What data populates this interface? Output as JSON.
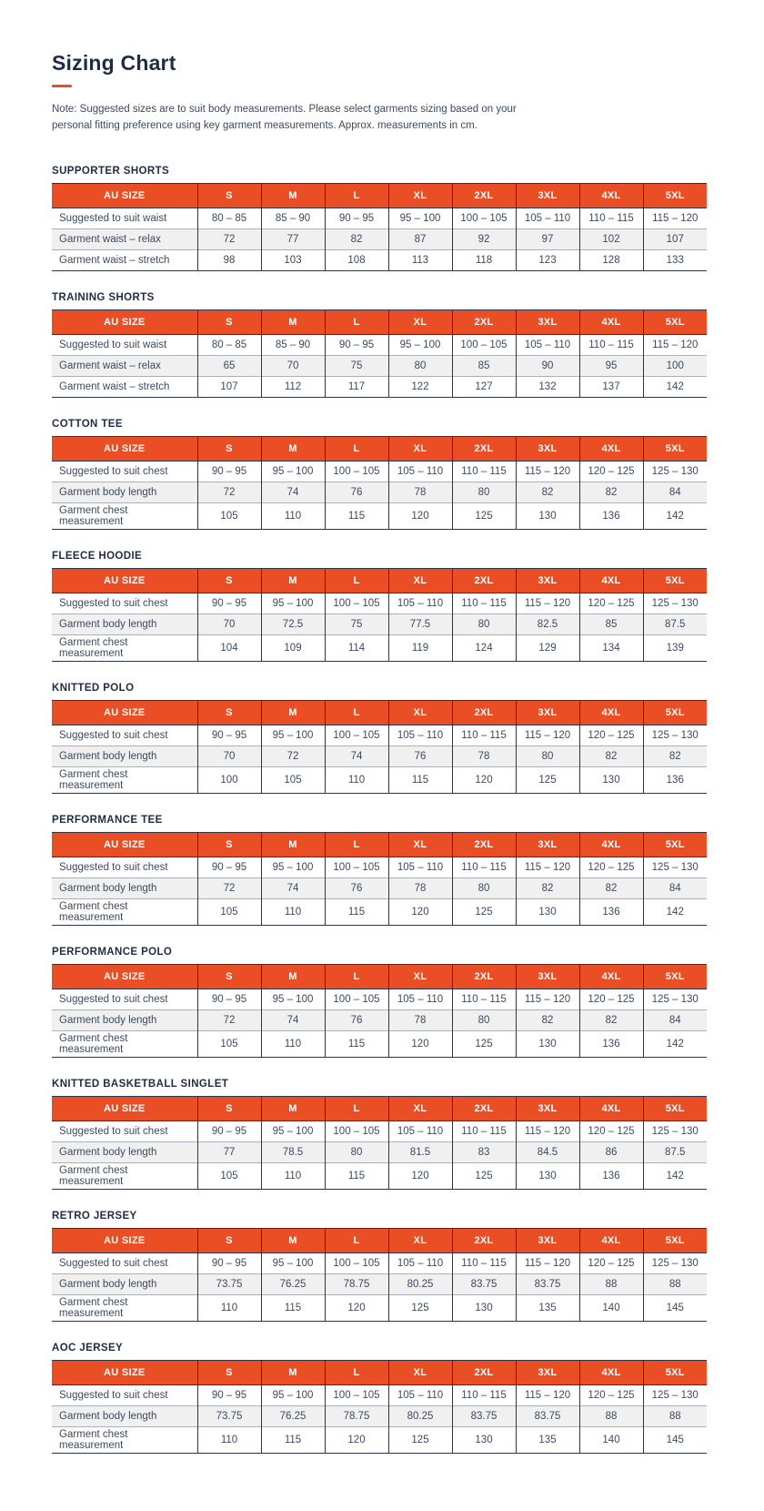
{
  "page": {
    "title": "Sizing Chart",
    "note": "Note: Suggested sizes are to suit body measurements. Please select garments sizing based on your personal fitting preference using key garment measurements. Approx. measurements in cm."
  },
  "colors": {
    "accent": "#e94e25",
    "heading": "#1f2c44",
    "text": "#3c4a5e",
    "stripe": "#f0f0f1",
    "border_dark": "#27354e",
    "border_light": "#abb0b7"
  },
  "size_columns": [
    "AU SIZE",
    "S",
    "M",
    "L",
    "XL",
    "2XL",
    "3XL",
    "4XL",
    "5XL"
  ],
  "tables": [
    {
      "name": "SUPPORTER SHORTS",
      "rows": [
        {
          "label": "Suggested to suit waist",
          "values": [
            "80 – 85",
            "85 – 90",
            "90 – 95",
            "95 – 100",
            "100 – 105",
            "105 – 110",
            "110 – 115",
            "115 – 120"
          ]
        },
        {
          "label": "Garment waist – relax",
          "values": [
            "72",
            "77",
            "82",
            "87",
            "92",
            "97",
            "102",
            "107"
          ]
        },
        {
          "label": "Garment waist – stretch",
          "values": [
            "98",
            "103",
            "108",
            "113",
            "118",
            "123",
            "128",
            "133"
          ]
        }
      ]
    },
    {
      "name": "TRAINING SHORTS",
      "rows": [
        {
          "label": "Suggested to suit waist",
          "values": [
            "80 – 85",
            "85 – 90",
            "90 – 95",
            "95 – 100",
            "100 – 105",
            "105 – 110",
            "110 – 115",
            "115 – 120"
          ]
        },
        {
          "label": "Garment waist – relax",
          "values": [
            "65",
            "70",
            "75",
            "80",
            "85",
            "90",
            "95",
            "100"
          ]
        },
        {
          "label": "Garment waist – stretch",
          "values": [
            "107",
            "112",
            "117",
            "122",
            "127",
            "132",
            "137",
            "142"
          ]
        }
      ]
    },
    {
      "name": "COTTON TEE",
      "rows": [
        {
          "label": "Suggested to suit chest",
          "values": [
            "90 – 95",
            "95 – 100",
            "100 – 105",
            "105 – 110",
            "110 – 115",
            "115 – 120",
            "120 – 125",
            "125 – 130"
          ]
        },
        {
          "label": "Garment body length",
          "values": [
            "72",
            "74",
            "76",
            "78",
            "80",
            "82",
            "82",
            "84"
          ]
        },
        {
          "label": "Garment chest measurement",
          "values": [
            "105",
            "110",
            "115",
            "120",
            "125",
            "130",
            "136",
            "142"
          ]
        }
      ]
    },
    {
      "name": "FLEECE HOODIE",
      "rows": [
        {
          "label": "Suggested to suit chest",
          "values": [
            "90 – 95",
            "95 – 100",
            "100 – 105",
            "105 – 110",
            "110 – 115",
            "115 – 120",
            "120 – 125",
            "125 – 130"
          ]
        },
        {
          "label": "Garment body length",
          "values": [
            "70",
            "72.5",
            "75",
            "77.5",
            "80",
            "82.5",
            "85",
            "87.5"
          ]
        },
        {
          "label": "Garment chest measurement",
          "values": [
            "104",
            "109",
            "114",
            "119",
            "124",
            "129",
            "134",
            "139"
          ]
        }
      ]
    },
    {
      "name": "KNITTED POLO",
      "rows": [
        {
          "label": "Suggested to suit chest",
          "values": [
            "90 – 95",
            "95 – 100",
            "100 – 105",
            "105 – 110",
            "110 – 115",
            "115 – 120",
            "120 – 125",
            "125 – 130"
          ]
        },
        {
          "label": "Garment body length",
          "values": [
            "70",
            "72",
            "74",
            "76",
            "78",
            "80",
            "82",
            "82"
          ]
        },
        {
          "label": "Garment chest measurement",
          "values": [
            "100",
            "105",
            "110",
            "115",
            "120",
            "125",
            "130",
            "136"
          ]
        }
      ]
    },
    {
      "name": "PERFORMANCE TEE",
      "rows": [
        {
          "label": "Suggested to suit chest",
          "values": [
            "90 – 95",
            "95 – 100",
            "100 – 105",
            "105 – 110",
            "110 – 115",
            "115 – 120",
            "120 – 125",
            "125 – 130"
          ]
        },
        {
          "label": "Garment body length",
          "values": [
            "72",
            "74",
            "76",
            "78",
            "80",
            "82",
            "82",
            "84"
          ]
        },
        {
          "label": "Garment chest measurement",
          "values": [
            "105",
            "110",
            "115",
            "120",
            "125",
            "130",
            "136",
            "142"
          ]
        }
      ]
    },
    {
      "name": "PERFORMANCE POLO",
      "rows": [
        {
          "label": "Suggested to suit chest",
          "values": [
            "90 – 95",
            "95 – 100",
            "100 – 105",
            "105 – 110",
            "110 – 115",
            "115 – 120",
            "120 – 125",
            "125 – 130"
          ]
        },
        {
          "label": "Garment body length",
          "values": [
            "72",
            "74",
            "76",
            "78",
            "80",
            "82",
            "82",
            "84"
          ]
        },
        {
          "label": "Garment chest measurement",
          "values": [
            "105",
            "110",
            "115",
            "120",
            "125",
            "130",
            "136",
            "142"
          ]
        }
      ]
    },
    {
      "name": "KNITTED BASKETBALL SINGLET",
      "rows": [
        {
          "label": "Suggested to suit chest",
          "values": [
            "90 – 95",
            "95 – 100",
            "100 – 105",
            "105 – 110",
            "110 – 115",
            "115 – 120",
            "120 – 125",
            "125 – 130"
          ]
        },
        {
          "label": "Garment body length",
          "values": [
            "77",
            "78.5",
            "80",
            "81.5",
            "83",
            "84.5",
            "86",
            "87.5"
          ]
        },
        {
          "label": "Garment chest measurement",
          "values": [
            "105",
            "110",
            "115",
            "120",
            "125",
            "130",
            "136",
            "142"
          ]
        }
      ]
    },
    {
      "name": "RETRO JERSEY",
      "rows": [
        {
          "label": "Suggested to suit chest",
          "values": [
            "90 – 95",
            "95 – 100",
            "100 – 105",
            "105 – 110",
            "110 – 115",
            "115 – 120",
            "120 – 125",
            "125 – 130"
          ]
        },
        {
          "label": "Garment body length",
          "values": [
            "73.75",
            "76.25",
            "78.75",
            "80.25",
            "83.75",
            "83.75",
            "88",
            "88"
          ]
        },
        {
          "label": "Garment chest measurement",
          "values": [
            "110",
            "115",
            "120",
            "125",
            "130",
            "135",
            "140",
            "145"
          ]
        }
      ]
    },
    {
      "name": "AOC JERSEY",
      "rows": [
        {
          "label": "Suggested to suit chest",
          "values": [
            "90 – 95",
            "95 – 100",
            "100 – 105",
            "105 – 110",
            "110 – 115",
            "115 – 120",
            "120 – 125",
            "125 – 130"
          ]
        },
        {
          "label": "Garment body length",
          "values": [
            "73.75",
            "76.25",
            "78.75",
            "80.25",
            "83.75",
            "83.75",
            "88",
            "88"
          ]
        },
        {
          "label": "Garment chest measurement",
          "values": [
            "110",
            "115",
            "120",
            "125",
            "130",
            "135",
            "140",
            "145"
          ]
        }
      ]
    }
  ]
}
